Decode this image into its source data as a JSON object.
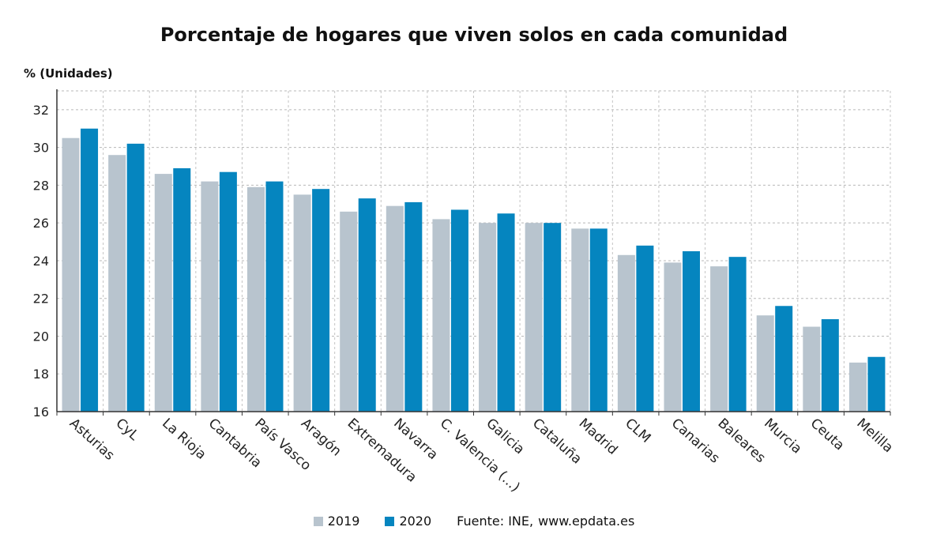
{
  "chart_title": "Porcentaje de hogares que viven solos en cada comunidad",
  "chart_data": {
    "type": "bar",
    "title": "Porcentaje de hogares que viven solos en cada comunidad",
    "ylabel": "% (Unidades)",
    "xlabel": "",
    "ylim": [
      16,
      33
    ],
    "yticks": [
      16,
      18,
      20,
      22,
      24,
      26,
      28,
      30,
      32
    ],
    "grid": true,
    "legend_position": "bottom",
    "categories": [
      "Asturias",
      "CyL",
      "La Rioja",
      "Cantabria",
      "País Vasco",
      "Aragón",
      "Extremadura",
      "Navarra",
      "C. Valencia (...)",
      "Galicia",
      "Cataluña",
      "Madrid",
      "CLM",
      "Canarias",
      "Baleares",
      "Murcia",
      "Ceuta",
      "Melilla"
    ],
    "series": [
      {
        "name": "2019",
        "color": "#b8c4ce",
        "values": [
          30.5,
          29.6,
          28.6,
          28.2,
          27.9,
          27.5,
          26.6,
          26.9,
          26.2,
          26.0,
          26.0,
          25.7,
          24.3,
          23.9,
          23.7,
          21.1,
          20.5,
          18.6
        ]
      },
      {
        "name": "2020",
        "color": "#0585bf",
        "values": [
          31.0,
          30.2,
          28.9,
          28.7,
          28.2,
          27.8,
          27.3,
          27.1,
          26.7,
          26.5,
          26.0,
          25.7,
          24.8,
          24.5,
          24.2,
          21.6,
          20.9,
          18.9
        ]
      }
    ]
  },
  "legend": {
    "items": [
      {
        "label": "2019",
        "color": "#b8c4ce"
      },
      {
        "label": "2020",
        "color": "#0585bf"
      }
    ],
    "source_label": "Fuente: INE,",
    "source_web": "www.epdata.es"
  }
}
